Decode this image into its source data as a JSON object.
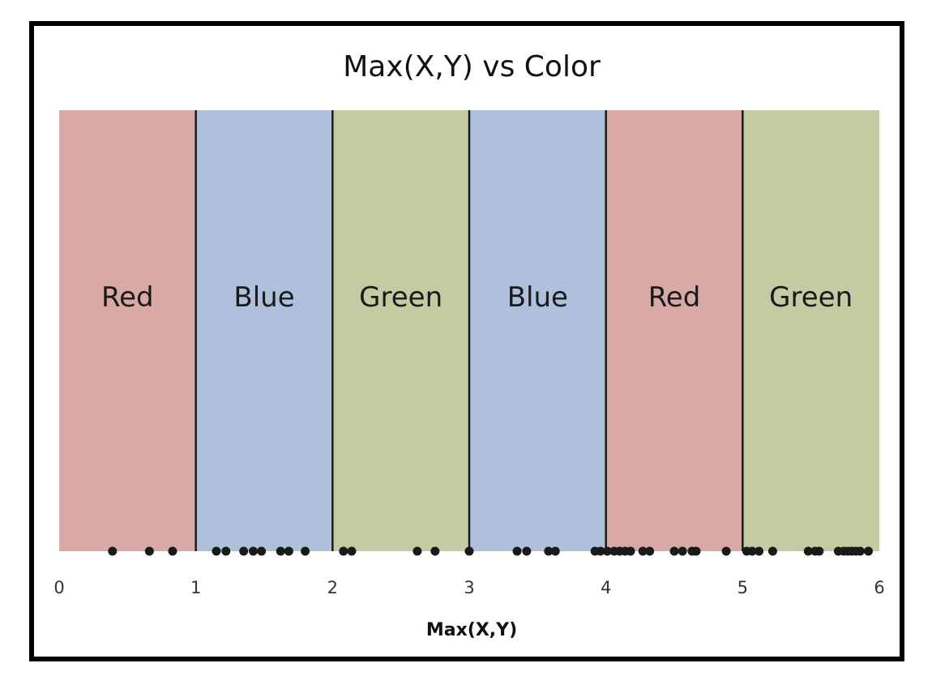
{
  "chart_data": {
    "type": "scatter",
    "title": "Max(X,Y) vs Color",
    "xlabel": "Max(X,Y)",
    "ylabel": "",
    "xlim": [
      0,
      6
    ],
    "x_ticks": [
      "0",
      "1",
      "2",
      "3",
      "4",
      "5",
      "6"
    ],
    "grid": false,
    "legend": "none",
    "regions": [
      {
        "label": "Red",
        "from": 0,
        "to": 1,
        "color": "#d9a9a8"
      },
      {
        "label": "Blue",
        "from": 1,
        "to": 2,
        "color": "#aec0db"
      },
      {
        "label": "Green",
        "from": 2,
        "to": 3,
        "color": "#c3cba3"
      },
      {
        "label": "Blue",
        "from": 3,
        "to": 4,
        "color": "#aec0db"
      },
      {
        "label": "Red",
        "from": 4,
        "to": 5,
        "color": "#d9a9a8"
      },
      {
        "label": "Green",
        "from": 5,
        "to": 6,
        "color": "#c3cba3"
      }
    ],
    "boundaries": [
      1,
      2,
      3,
      4,
      5
    ],
    "boundary_color": "#1a1a1a",
    "point_color": "#1a1a1a",
    "points": [
      0.39,
      0.66,
      0.83,
      1.15,
      1.22,
      1.35,
      1.42,
      1.48,
      1.62,
      1.68,
      1.8,
      2.08,
      2.14,
      2.62,
      2.75,
      3.0,
      3.35,
      3.42,
      3.58,
      3.63,
      3.92,
      3.96,
      4.01,
      4.06,
      4.1,
      4.14,
      4.18,
      4.27,
      4.32,
      4.5,
      4.56,
      4.63,
      4.66,
      4.88,
      5.03,
      5.07,
      5.12,
      5.22,
      5.48,
      5.53,
      5.56,
      5.7,
      5.74,
      5.77,
      5.8,
      5.83,
      5.86,
      5.92
    ]
  }
}
